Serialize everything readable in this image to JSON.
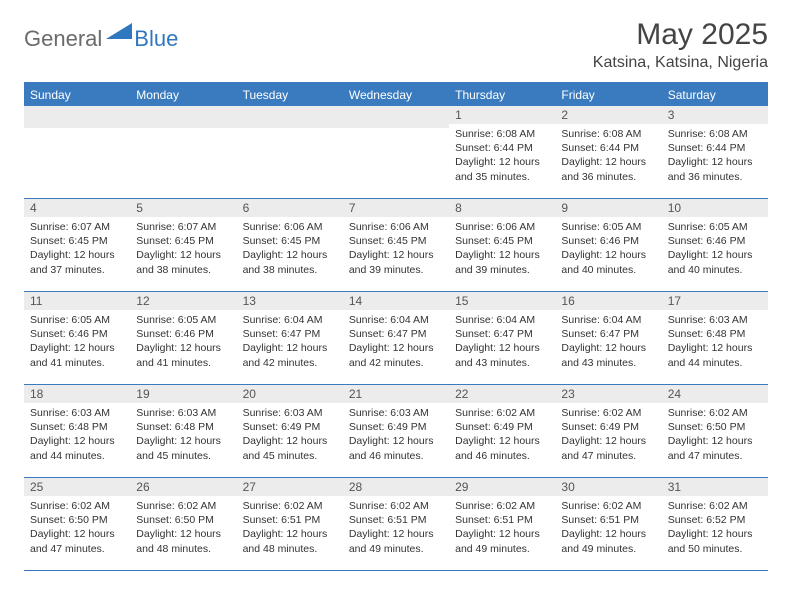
{
  "logo": {
    "text1": "General",
    "text2": "Blue",
    "shape_color": "#2f78bf"
  },
  "title": "May 2025",
  "location": "Katsina, Katsina, Nigeria",
  "header_bg": "#3a7bbf",
  "header_text_color": "#ffffff",
  "daynum_bg": "#ececec",
  "border_color": "#3a7bbf",
  "weekdays": [
    "Sunday",
    "Monday",
    "Tuesday",
    "Wednesday",
    "Thursday",
    "Friday",
    "Saturday"
  ],
  "weeks": [
    [
      null,
      null,
      null,
      null,
      {
        "n": "1",
        "sr": "Sunrise: 6:08 AM",
        "ss": "Sunset: 6:44 PM",
        "dl": "Daylight: 12 hours and 35 minutes."
      },
      {
        "n": "2",
        "sr": "Sunrise: 6:08 AM",
        "ss": "Sunset: 6:44 PM",
        "dl": "Daylight: 12 hours and 36 minutes."
      },
      {
        "n": "3",
        "sr": "Sunrise: 6:08 AM",
        "ss": "Sunset: 6:44 PM",
        "dl": "Daylight: 12 hours and 36 minutes."
      }
    ],
    [
      {
        "n": "4",
        "sr": "Sunrise: 6:07 AM",
        "ss": "Sunset: 6:45 PM",
        "dl": "Daylight: 12 hours and 37 minutes."
      },
      {
        "n": "5",
        "sr": "Sunrise: 6:07 AM",
        "ss": "Sunset: 6:45 PM",
        "dl": "Daylight: 12 hours and 38 minutes."
      },
      {
        "n": "6",
        "sr": "Sunrise: 6:06 AM",
        "ss": "Sunset: 6:45 PM",
        "dl": "Daylight: 12 hours and 38 minutes."
      },
      {
        "n": "7",
        "sr": "Sunrise: 6:06 AM",
        "ss": "Sunset: 6:45 PM",
        "dl": "Daylight: 12 hours and 39 minutes."
      },
      {
        "n": "8",
        "sr": "Sunrise: 6:06 AM",
        "ss": "Sunset: 6:45 PM",
        "dl": "Daylight: 12 hours and 39 minutes."
      },
      {
        "n": "9",
        "sr": "Sunrise: 6:05 AM",
        "ss": "Sunset: 6:46 PM",
        "dl": "Daylight: 12 hours and 40 minutes."
      },
      {
        "n": "10",
        "sr": "Sunrise: 6:05 AM",
        "ss": "Sunset: 6:46 PM",
        "dl": "Daylight: 12 hours and 40 minutes."
      }
    ],
    [
      {
        "n": "11",
        "sr": "Sunrise: 6:05 AM",
        "ss": "Sunset: 6:46 PM",
        "dl": "Daylight: 12 hours and 41 minutes."
      },
      {
        "n": "12",
        "sr": "Sunrise: 6:05 AM",
        "ss": "Sunset: 6:46 PM",
        "dl": "Daylight: 12 hours and 41 minutes."
      },
      {
        "n": "13",
        "sr": "Sunrise: 6:04 AM",
        "ss": "Sunset: 6:47 PM",
        "dl": "Daylight: 12 hours and 42 minutes."
      },
      {
        "n": "14",
        "sr": "Sunrise: 6:04 AM",
        "ss": "Sunset: 6:47 PM",
        "dl": "Daylight: 12 hours and 42 minutes."
      },
      {
        "n": "15",
        "sr": "Sunrise: 6:04 AM",
        "ss": "Sunset: 6:47 PM",
        "dl": "Daylight: 12 hours and 43 minutes."
      },
      {
        "n": "16",
        "sr": "Sunrise: 6:04 AM",
        "ss": "Sunset: 6:47 PM",
        "dl": "Daylight: 12 hours and 43 minutes."
      },
      {
        "n": "17",
        "sr": "Sunrise: 6:03 AM",
        "ss": "Sunset: 6:48 PM",
        "dl": "Daylight: 12 hours and 44 minutes."
      }
    ],
    [
      {
        "n": "18",
        "sr": "Sunrise: 6:03 AM",
        "ss": "Sunset: 6:48 PM",
        "dl": "Daylight: 12 hours and 44 minutes."
      },
      {
        "n": "19",
        "sr": "Sunrise: 6:03 AM",
        "ss": "Sunset: 6:48 PM",
        "dl": "Daylight: 12 hours and 45 minutes."
      },
      {
        "n": "20",
        "sr": "Sunrise: 6:03 AM",
        "ss": "Sunset: 6:49 PM",
        "dl": "Daylight: 12 hours and 45 minutes."
      },
      {
        "n": "21",
        "sr": "Sunrise: 6:03 AM",
        "ss": "Sunset: 6:49 PM",
        "dl": "Daylight: 12 hours and 46 minutes."
      },
      {
        "n": "22",
        "sr": "Sunrise: 6:02 AM",
        "ss": "Sunset: 6:49 PM",
        "dl": "Daylight: 12 hours and 46 minutes."
      },
      {
        "n": "23",
        "sr": "Sunrise: 6:02 AM",
        "ss": "Sunset: 6:49 PM",
        "dl": "Daylight: 12 hours and 47 minutes."
      },
      {
        "n": "24",
        "sr": "Sunrise: 6:02 AM",
        "ss": "Sunset: 6:50 PM",
        "dl": "Daylight: 12 hours and 47 minutes."
      }
    ],
    [
      {
        "n": "25",
        "sr": "Sunrise: 6:02 AM",
        "ss": "Sunset: 6:50 PM",
        "dl": "Daylight: 12 hours and 47 minutes."
      },
      {
        "n": "26",
        "sr": "Sunrise: 6:02 AM",
        "ss": "Sunset: 6:50 PM",
        "dl": "Daylight: 12 hours and 48 minutes."
      },
      {
        "n": "27",
        "sr": "Sunrise: 6:02 AM",
        "ss": "Sunset: 6:51 PM",
        "dl": "Daylight: 12 hours and 48 minutes."
      },
      {
        "n": "28",
        "sr": "Sunrise: 6:02 AM",
        "ss": "Sunset: 6:51 PM",
        "dl": "Daylight: 12 hours and 49 minutes."
      },
      {
        "n": "29",
        "sr": "Sunrise: 6:02 AM",
        "ss": "Sunset: 6:51 PM",
        "dl": "Daylight: 12 hours and 49 minutes."
      },
      {
        "n": "30",
        "sr": "Sunrise: 6:02 AM",
        "ss": "Sunset: 6:51 PM",
        "dl": "Daylight: 12 hours and 49 minutes."
      },
      {
        "n": "31",
        "sr": "Sunrise: 6:02 AM",
        "ss": "Sunset: 6:52 PM",
        "dl": "Daylight: 12 hours and 50 minutes."
      }
    ]
  ]
}
